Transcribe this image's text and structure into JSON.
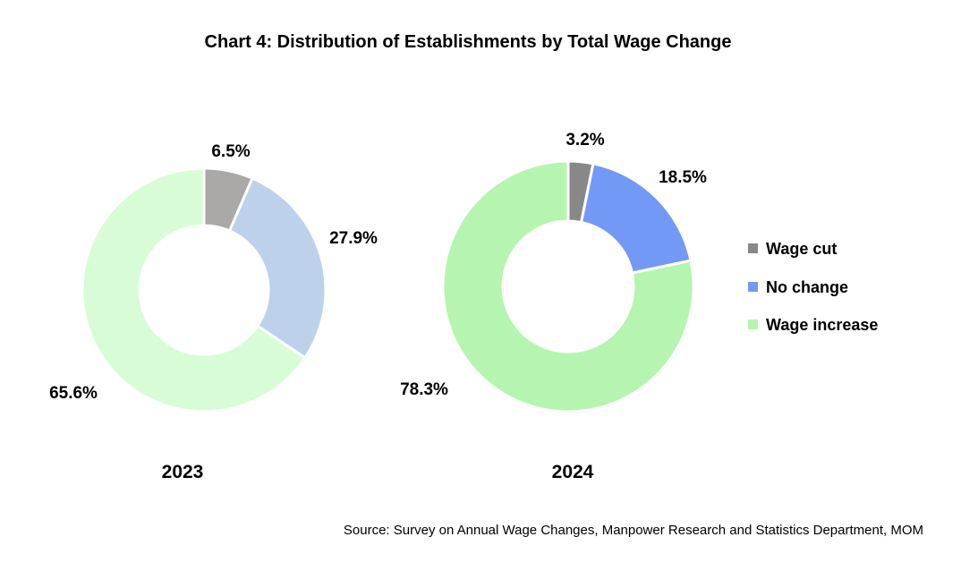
{
  "chart_data": {
    "type": "donut",
    "title": "Chart 4: Distribution of Establishments by Total Wage Change",
    "legend_position": "right",
    "categories": [
      "Wage cut",
      "No change",
      "Wage increase"
    ],
    "charts": [
      {
        "year_label": "2023",
        "values": [
          6.5,
          27.9,
          65.6
        ],
        "value_labels": [
          "6.5%",
          "27.9%",
          "65.6%"
        ],
        "colors": [
          "#aaa9a8",
          "#bdd1eb",
          "#d8fdd6"
        ]
      },
      {
        "year_label": "2024",
        "values": [
          3.2,
          18.5,
          78.3
        ],
        "value_labels": [
          "3.2%",
          "18.5%",
          "78.3%"
        ],
        "colors": [
          "#888888",
          "#7399f6",
          "#b6f5b0"
        ]
      }
    ],
    "legend": [
      {
        "label": "Wage cut",
        "color": "#888888"
      },
      {
        "label": "No change",
        "color": "#7399f6"
      },
      {
        "label": "Wage increase",
        "color": "#b6f5b0"
      }
    ],
    "source": "Source: Survey on Annual Wage Changes, Manpower Research and Statistics Department, MOM"
  }
}
